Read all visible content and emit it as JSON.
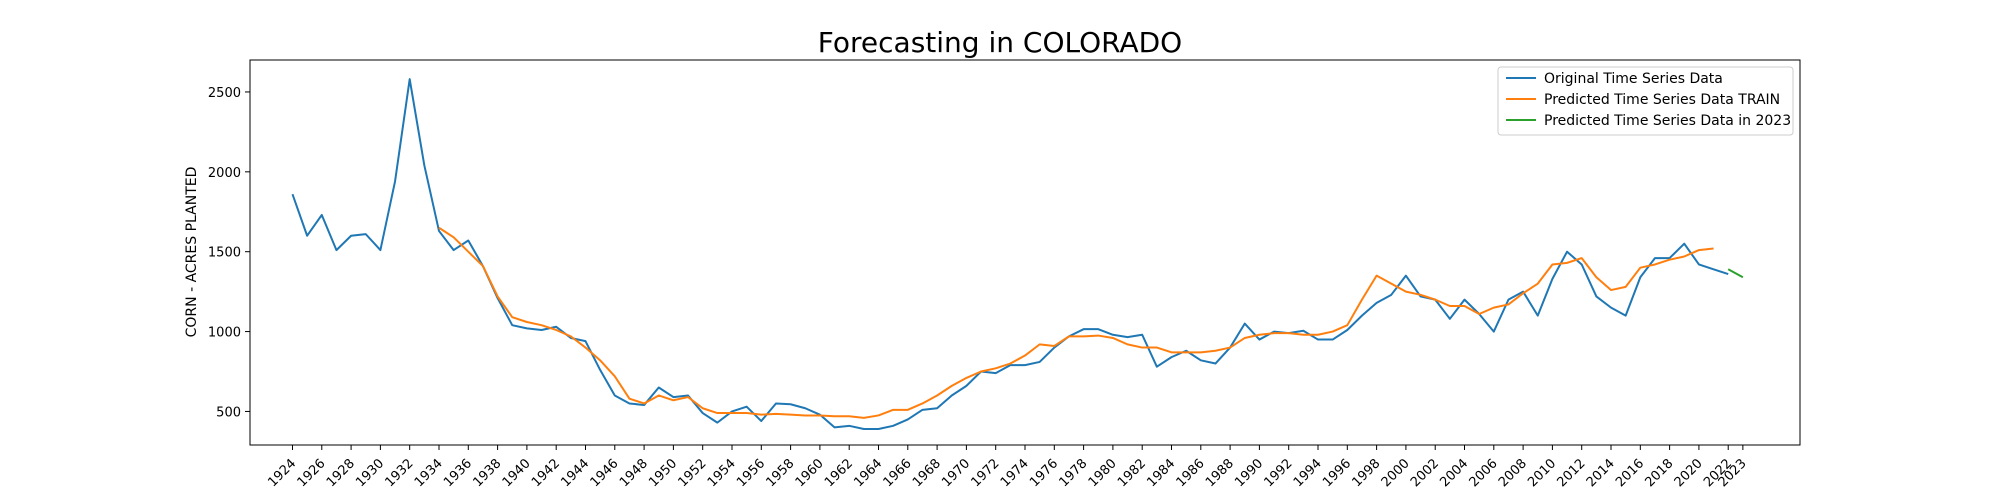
{
  "chart_data": {
    "type": "line",
    "title": "Forecasting in COLORADO",
    "xlabel": "",
    "ylabel": "CORN - ACRES PLANTED",
    "xlim": [
      1921.1,
      2026.9
    ],
    "ylim": [
      290,
      2700
    ],
    "yticks": [
      500,
      1000,
      1500,
      2000,
      2500
    ],
    "xticks": [
      1924,
      1926,
      1928,
      1930,
      1932,
      1934,
      1936,
      1938,
      1940,
      1942,
      1944,
      1946,
      1948,
      1950,
      1952,
      1954,
      1956,
      1958,
      1960,
      1962,
      1964,
      1966,
      1968,
      1970,
      1972,
      1974,
      1976,
      1978,
      1980,
      1982,
      1984,
      1986,
      1988,
      1990,
      1992,
      1994,
      1996,
      1998,
      2000,
      2002,
      2004,
      2006,
      2008,
      2010,
      2012,
      2014,
      2016,
      2018,
      2020,
      2022,
      2023
    ],
    "grid": false,
    "legend_position": "top-right",
    "series": [
      {
        "name": "Original Time Series Data",
        "color": "#1f77b4",
        "x": [
          1924,
          1925,
          1926,
          1927,
          1928,
          1929,
          1930,
          1931,
          1932,
          1933,
          1934,
          1935,
          1936,
          1937,
          1938,
          1939,
          1940,
          1941,
          1942,
          1943,
          1944,
          1945,
          1946,
          1947,
          1948,
          1949,
          1950,
          1951,
          1952,
          1953,
          1954,
          1955,
          1956,
          1957,
          1958,
          1959,
          1960,
          1961,
          1962,
          1963,
          1964,
          1965,
          1966,
          1967,
          1968,
          1969,
          1970,
          1971,
          1972,
          1973,
          1974,
          1975,
          1976,
          1977,
          1978,
          1979,
          1980,
          1981,
          1982,
          1983,
          1984,
          1985,
          1986,
          1987,
          1988,
          1989,
          1990,
          1991,
          1992,
          1993,
          1994,
          1995,
          1996,
          1997,
          1998,
          1999,
          2000,
          2001,
          2002,
          2003,
          2004,
          2005,
          2006,
          2007,
          2008,
          2009,
          2010,
          2011,
          2012,
          2013,
          2014,
          2015,
          2016,
          2017,
          2018,
          2019,
          2020,
          2021,
          2022
        ],
        "y": [
          1860,
          1600,
          1730,
          1510,
          1600,
          1610,
          1510,
          1940,
          2580,
          2040,
          1630,
          1510,
          1570,
          1410,
          1210,
          1040,
          1020,
          1010,
          1030,
          960,
          940,
          760,
          600,
          550,
          540,
          650,
          590,
          600,
          490,
          430,
          500,
          530,
          440,
          550,
          545,
          520,
          480,
          400,
          410,
          390,
          390,
          410,
          450,
          510,
          520,
          600,
          660,
          750,
          740,
          790,
          790,
          810,
          900,
          970,
          1015,
          1015,
          980,
          965,
          980,
          780,
          840,
          880,
          820,
          800,
          900,
          1050,
          950,
          1000,
          990,
          1005,
          950,
          950,
          1010,
          1100,
          1180,
          1230,
          1350,
          1220,
          1200,
          1080,
          1200,
          1110,
          1000,
          1200,
          1250,
          1100,
          1330,
          1500,
          1420,
          1220,
          1150,
          1100,
          1340,
          1460,
          1460,
          1550,
          1420,
          1390,
          1360
        ]
      },
      {
        "name": "Predicted Time Series Data TRAIN",
        "color": "#ff7f0e",
        "x": [
          1934,
          1935,
          1936,
          1937,
          1938,
          1939,
          1940,
          1941,
          1942,
          1943,
          1944,
          1945,
          1946,
          1947,
          1948,
          1949,
          1950,
          1951,
          1952,
          1953,
          1954,
          1955,
          1956,
          1957,
          1958,
          1959,
          1960,
          1961,
          1962,
          1963,
          1964,
          1965,
          1966,
          1967,
          1968,
          1969,
          1970,
          1971,
          1972,
          1973,
          1974,
          1975,
          1976,
          1977,
          1978,
          1979,
          1980,
          1981,
          1982,
          1983,
          1984,
          1985,
          1986,
          1987,
          1988,
          1989,
          1990,
          1991,
          1992,
          1993,
          1994,
          1995,
          1996,
          1997,
          1998,
          1999,
          2000,
          2001,
          2002,
          2003,
          2004,
          2005,
          2006,
          2007,
          2008,
          2009,
          2010,
          2011,
          2012,
          2013,
          2014,
          2015,
          2016,
          2017,
          2018,
          2019,
          2020,
          2021
        ],
        "y": [
          1650,
          1590,
          1500,
          1410,
          1220,
          1090,
          1060,
          1040,
          1010,
          970,
          900,
          820,
          720,
          580,
          550,
          600,
          570,
          590,
          520,
          490,
          490,
          490,
          480,
          485,
          480,
          475,
          475,
          470,
          470,
          460,
          475,
          510,
          510,
          550,
          600,
          660,
          710,
          750,
          770,
          800,
          850,
          920,
          910,
          970,
          970,
          975,
          960,
          920,
          900,
          900,
          870,
          870,
          870,
          880,
          900,
          960,
          980,
          990,
          990,
          980,
          980,
          1000,
          1040,
          1200,
          1350,
          1300,
          1250,
          1230,
          1200,
          1160,
          1160,
          1110,
          1150,
          1170,
          1240,
          1300,
          1420,
          1430,
          1460,
          1340,
          1260,
          1280,
          1400,
          1420,
          1450,
          1470,
          1510,
          1520
        ]
      },
      {
        "name": "Predicted Time Series Data in 2023",
        "color": "#2ca02c",
        "x": [
          2022,
          2023
        ],
        "y": [
          1390,
          1340
        ]
      }
    ]
  }
}
